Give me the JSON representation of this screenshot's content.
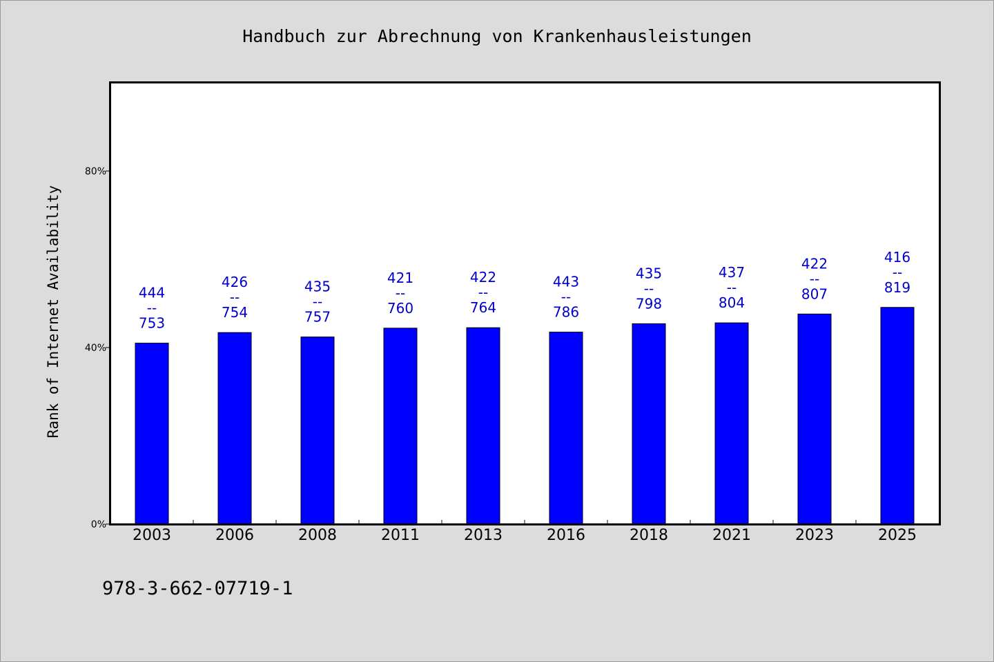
{
  "chart_data": {
    "type": "bar",
    "title": "Handbuch zur Abrechnung von Krankenhausleistungen",
    "ylabel": "Rank of Internet Availability",
    "xlabel": "",
    "categories": [
      "2003",
      "2006",
      "2008",
      "2011",
      "2013",
      "2016",
      "2018",
      "2021",
      "2023",
      "2025"
    ],
    "values": [
      41,
      43.4,
      42.4,
      44.4,
      44.5,
      43.5,
      45.4,
      45.6,
      47.6,
      49.1
    ],
    "data_labels": [
      {
        "top": "444",
        "sep": "--",
        "bottom": "753"
      },
      {
        "top": "426",
        "sep": "--",
        "bottom": "754"
      },
      {
        "top": "435",
        "sep": "--",
        "bottom": "757"
      },
      {
        "top": "421",
        "sep": "--",
        "bottom": "760"
      },
      {
        "top": "422",
        "sep": "--",
        "bottom": "764"
      },
      {
        "top": "443",
        "sep": "--",
        "bottom": "786"
      },
      {
        "top": "435",
        "sep": "--",
        "bottom": "798"
      },
      {
        "top": "437",
        "sep": "--",
        "bottom": "804"
      },
      {
        "top": "422",
        "sep": "--",
        "bottom": "807"
      },
      {
        "top": "416",
        "sep": "--",
        "bottom": "819"
      }
    ],
    "ylim": [
      0,
      100
    ],
    "yticks": [
      {
        "value": 0,
        "label": "0%"
      },
      {
        "value": 40,
        "label": "40%"
      },
      {
        "value": 80,
        "label": "80%"
      }
    ],
    "grid": false,
    "bar_color": "#0000ff",
    "label_color": "#0000cc"
  },
  "footer": {
    "text": "978-3-662-07719-1"
  }
}
